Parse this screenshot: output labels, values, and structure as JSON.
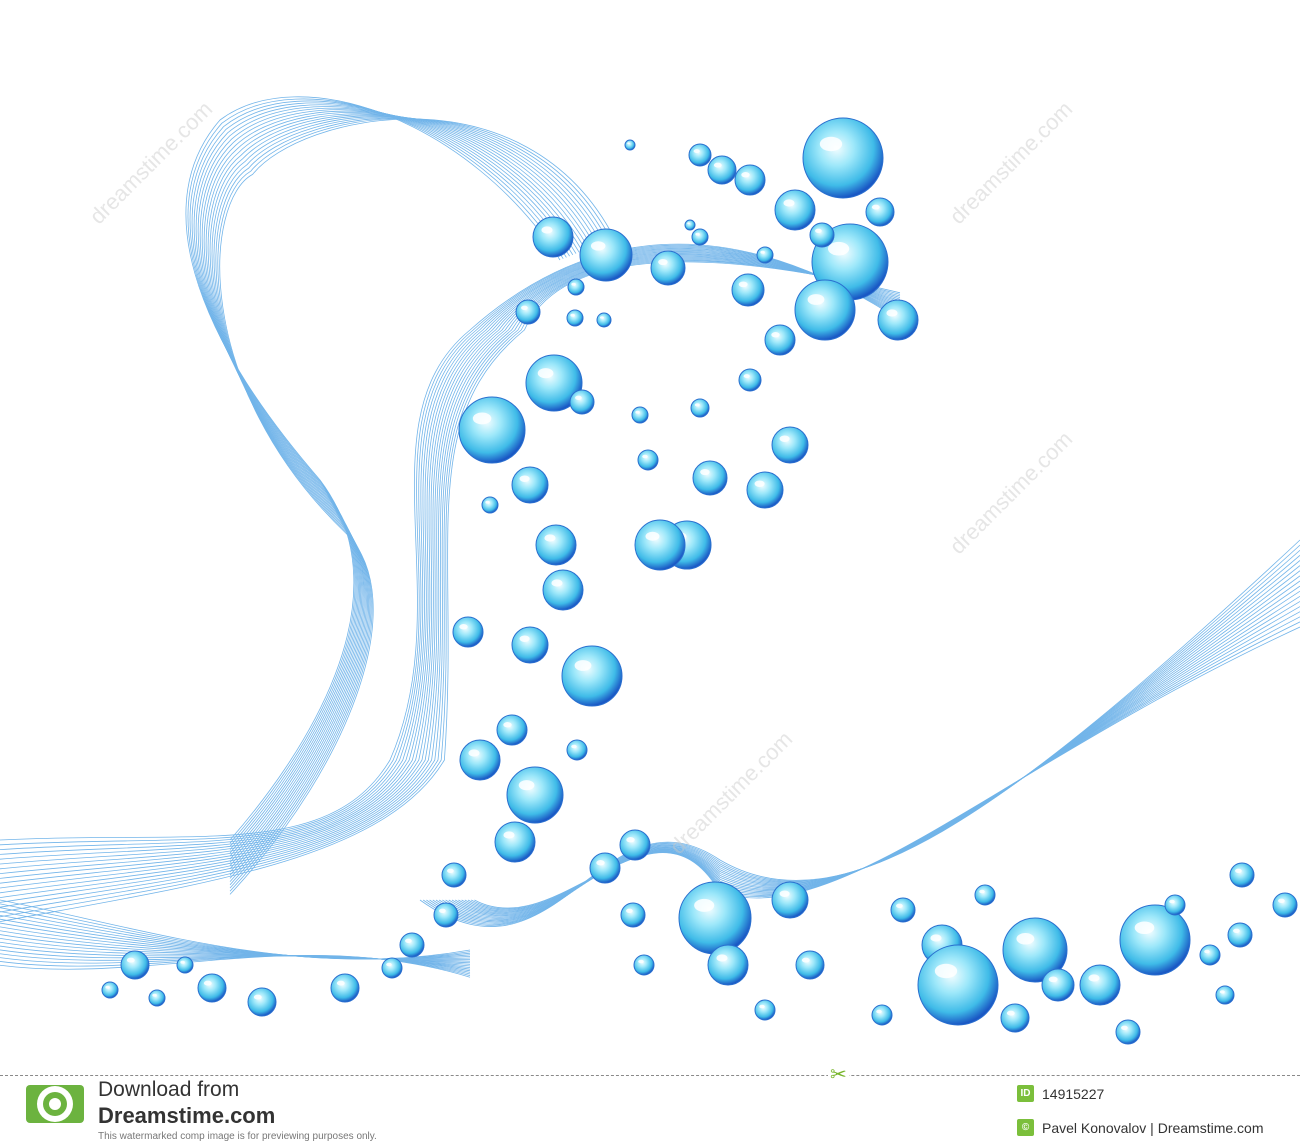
{
  "image": {
    "subject": "water-bubbles-wave",
    "palette": {
      "bubble_light": "#c8f4ff",
      "bubble_mid": "#4fc9ee",
      "bubble_dark": "#1c5fc7",
      "wave_line": "#5aa8e6"
    }
  },
  "watermark": {
    "text": "dreamstime.com"
  },
  "footer": {
    "download_line1": "Download from",
    "download_line2": "Dreamstime.com",
    "disclaimer": "This watermarked comp image is for previewing purposes only.",
    "id_badge": "ID",
    "id_value": "14915227",
    "copyright_badge": "©",
    "credit": "Pavel Konovalov | Dreamstime.com",
    "scissors_icon": "scissors-icon",
    "logo_icon": "dreamstime-spiral-logo-icon"
  }
}
